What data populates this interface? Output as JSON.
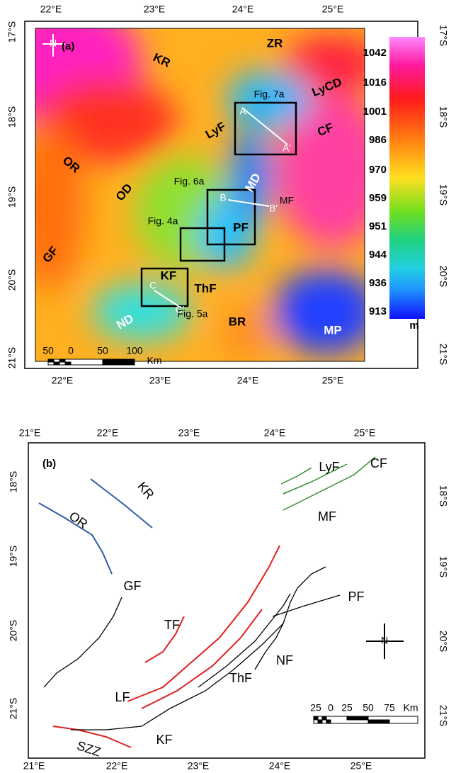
{
  "panel_a": {
    "label": "(a)",
    "top_ticks": [
      "22°E",
      "23°E",
      "24°E",
      "25°E"
    ],
    "bottom_ticks": [
      "22°E",
      "23°E",
      "24°E",
      "25°E"
    ],
    "left_ticks": [
      "17°S",
      "18°S",
      "19°S",
      "20°S",
      "21°S"
    ],
    "right_ticks": [
      "17°S",
      "18°S",
      "19°S",
      "20°S",
      "21°S"
    ],
    "colorbar": {
      "labels": [
        "1042",
        "1016",
        "1001",
        "986",
        "970",
        "959",
        "951",
        "944",
        "936",
        "913"
      ],
      "unit": "m"
    },
    "scale_bar": {
      "labels": [
        "50",
        "0",
        "50",
        "100"
      ],
      "unit": "Km"
    },
    "north": "N",
    "boxes": [
      "Fig. 7a",
      "Fig. 6a",
      "Fig. 4a",
      "Fig. 5a"
    ],
    "profiles": [
      "A",
      "A'",
      "B",
      "B'",
      "C",
      "C'"
    ],
    "features": [
      "ZR",
      "KR",
      "LyCD",
      "CF",
      "LyF",
      "OR",
      "MD",
      "MF",
      "OD",
      "PF",
      "GF",
      "KF",
      "ThF",
      "ND",
      "BR",
      "MP"
    ]
  },
  "panel_b": {
    "label": "(b)",
    "top_ticks": [
      "21°E",
      "22°E",
      "23°E",
      "24°E",
      "25°E"
    ],
    "bottom_ticks": [
      "21°E",
      "22°E",
      "23°E",
      "24°E",
      "25°E"
    ],
    "left_ticks": [
      "18°S",
      "19°S",
      "20°S",
      "21°S"
    ],
    "right_ticks": [
      "18°S",
      "19°S",
      "20°S",
      "21°S"
    ],
    "scale_bar": {
      "labels": [
        "25",
        "0",
        "25",
        "50",
        "75"
      ],
      "unit": "Km"
    },
    "north": "N",
    "faults": [
      "LyF",
      "CF",
      "KR",
      "MF",
      "OR",
      "GF",
      "PF",
      "TF",
      "NF",
      "ThF",
      "LF",
      "KF",
      "SZZ"
    ]
  }
}
